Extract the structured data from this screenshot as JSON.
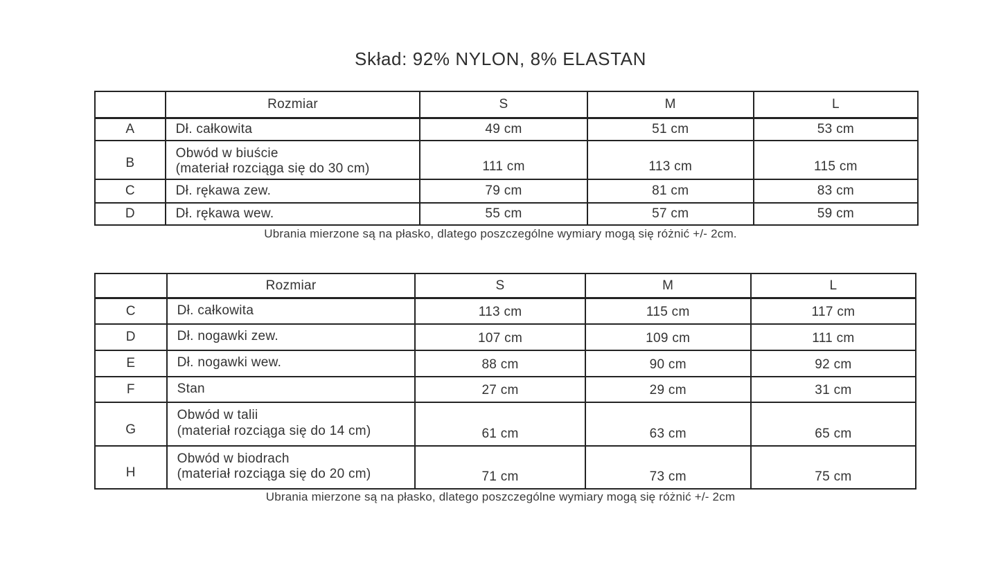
{
  "page": {
    "title": "Skład: 92% NYLON, 8% ELASTAN",
    "background_color": "#ffffff",
    "text_color": "#333333",
    "border_color": "#232323"
  },
  "tables": [
    {
      "name": "upper-garment-size-table",
      "header": {
        "letter": "",
        "label": "Rozmiar",
        "sizes": [
          "S",
          "M",
          "L"
        ]
      },
      "rows": [
        {
          "letter": "A",
          "label_lines": [
            "Dł. całkowita"
          ],
          "values": [
            "49 cm",
            "51 cm",
            "53 cm"
          ]
        },
        {
          "letter": "B",
          "label_lines": [
            "Obwód w biuście",
            "(materiał rozciąga się do 30 cm)"
          ],
          "values": [
            "111 cm",
            "113 cm",
            "115 cm"
          ]
        },
        {
          "letter": "C",
          "label_lines": [
            "Dł. rękawa zew."
          ],
          "values": [
            "79 cm",
            "81 cm",
            "83 cm"
          ]
        },
        {
          "letter": "D",
          "label_lines": [
            "Dł. rękawa wew."
          ],
          "values": [
            "55 cm",
            "57 cm",
            "59 cm"
          ]
        }
      ],
      "note": "Ubrania mierzone są na płasko, dlatego poszczególne wymiary mogą się różnić +/- 2cm."
    },
    {
      "name": "lower-garment-size-table",
      "header": {
        "letter": "",
        "label": "Rozmiar",
        "sizes": [
          "S",
          "M",
          "L"
        ]
      },
      "rows": [
        {
          "letter": "C",
          "label_lines": [
            "Dł. całkowita"
          ],
          "values": [
            "113 cm",
            "115 cm",
            "117 cm"
          ]
        },
        {
          "letter": "D",
          "label_lines": [
            "Dł. nogawki zew."
          ],
          "values": [
            "107 cm",
            "109 cm",
            "111 cm"
          ]
        },
        {
          "letter": "E",
          "label_lines": [
            "Dł. nogawki wew."
          ],
          "values": [
            "88 cm",
            "90 cm",
            "92 cm"
          ]
        },
        {
          "letter": "F",
          "label_lines": [
            "Stan"
          ],
          "values": [
            "27 cm",
            "29 cm",
            "31 cm"
          ]
        },
        {
          "letter": "G",
          "label_lines": [
            "Obwód w talii",
            "(materiał rozciąga się do 14 cm)"
          ],
          "values": [
            "61 cm",
            "63 cm",
            "65 cm"
          ]
        },
        {
          "letter": "H",
          "label_lines": [
            "Obwód w biodrach",
            "(materiał rozciąga się do 20 cm)"
          ],
          "values": [
            "71 cm",
            "73 cm",
            "75 cm"
          ]
        }
      ],
      "note": "Ubrania mierzone są na płasko, dlatego poszczególne wymiary mogą się różnić +/- 2cm"
    }
  ]
}
